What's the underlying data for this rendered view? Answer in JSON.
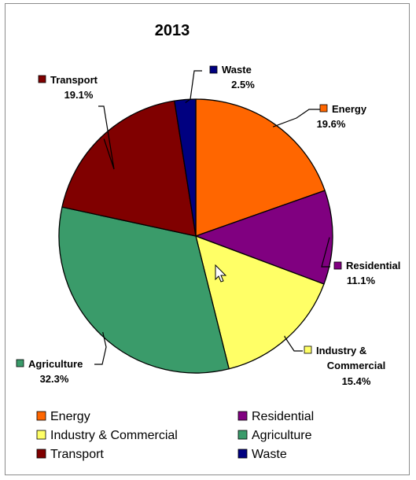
{
  "chart_data": {
    "type": "pie",
    "title": "2013",
    "slices": [
      {
        "name": "Energy",
        "value": 19.6,
        "label": "19.6%",
        "color": "#FF6600"
      },
      {
        "name": "Residential",
        "value": 11.1,
        "label": "11.1%",
        "color": "#800080"
      },
      {
        "name": "Industry & Commercial",
        "value": 15.4,
        "label": "15.4%",
        "color": "#FFFF66"
      },
      {
        "name": "Agriculture",
        "value": 32.3,
        "label": "32.3%",
        "color": "#3A9B6A"
      },
      {
        "name": "Transport",
        "value": 19.1,
        "label": "19.1%",
        "color": "#800000"
      },
      {
        "name": "Waste",
        "value": 2.5,
        "label": "2.5%",
        "color": "#000080"
      }
    ],
    "legend": {
      "position": "bottom",
      "columns": 2
    },
    "cursor_icon": "mouse-pointer-icon"
  }
}
